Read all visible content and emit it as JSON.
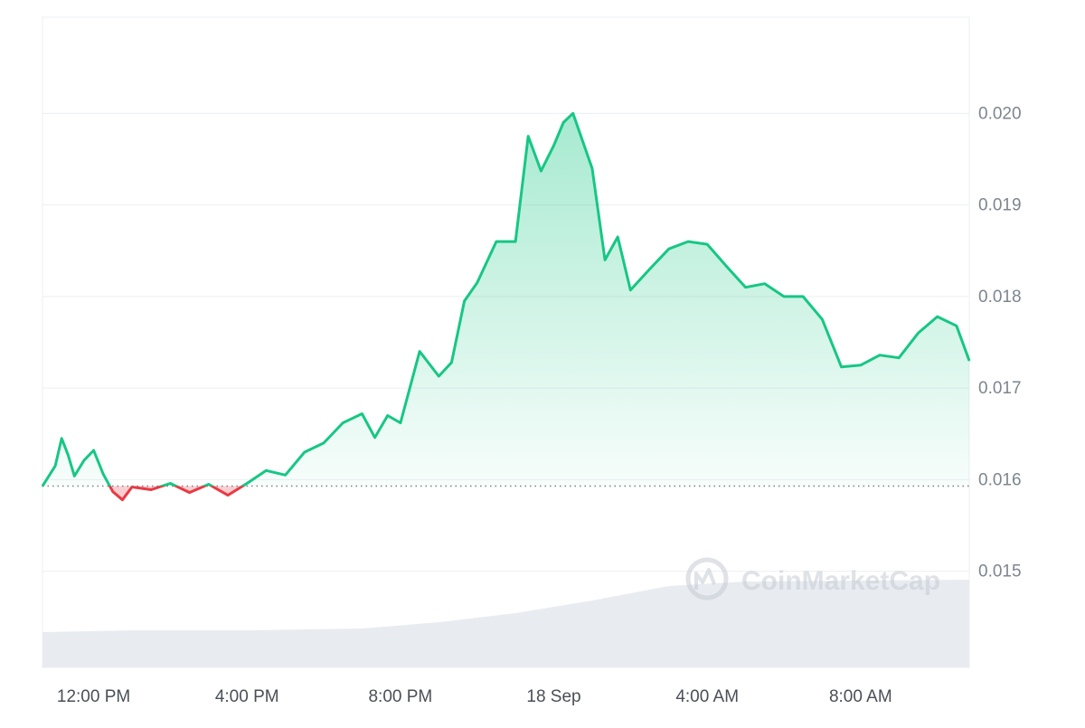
{
  "chart_data": {
    "type": "area",
    "title": "",
    "xlabel": "",
    "ylabel": "",
    "x_axis": {
      "start": "2024-09-17T10:40",
      "end": "2024-09-18T10:50",
      "ticks": [
        {
          "t": "2024-09-17T12:00",
          "label": "12:00 PM"
        },
        {
          "t": "2024-09-17T16:00",
          "label": "4:00 PM"
        },
        {
          "t": "2024-09-17T20:00",
          "label": "8:00 PM"
        },
        {
          "t": "2024-09-18T00:00",
          "label": "18 Sep"
        },
        {
          "t": "2024-09-18T04:00",
          "label": "4:00 AM"
        },
        {
          "t": "2024-09-18T08:00",
          "label": "8:00 AM"
        }
      ]
    },
    "y_axis": {
      "position": "right",
      "ylim": [
        0.01395,
        0.02105
      ],
      "ticks": [
        0.015,
        0.016,
        0.017,
        0.018,
        0.019,
        0.02
      ],
      "tick_labels": [
        "0.015",
        "0.016",
        "0.017",
        "0.018",
        "0.019",
        "0.020"
      ],
      "grid": true
    },
    "baseline": 0.01593,
    "baseline_style": "dotted",
    "colors": {
      "above": "#16c784",
      "below": "#ea3943",
      "volume": "#e8ecf1",
      "grid": "#eceff3",
      "baseline": "#7a7f87"
    },
    "series": [
      {
        "x": [
          "2024-09-17T10:40",
          "2024-09-17T11:00",
          "2024-09-17T11:10",
          "2024-09-17T11:20",
          "2024-09-17T11:30",
          "2024-09-17T11:45",
          "2024-09-17T12:00",
          "2024-09-17T12:15",
          "2024-09-17T12:30",
          "2024-09-17T12:45",
          "2024-09-17T13:00",
          "2024-09-17T13:30",
          "2024-09-17T14:00",
          "2024-09-17T14:30",
          "2024-09-17T15:00",
          "2024-09-17T15:30",
          "2024-09-17T16:00",
          "2024-09-17T16:30",
          "2024-09-17T17:00",
          "2024-09-17T17:30",
          "2024-09-17T18:00",
          "2024-09-17T18:30",
          "2024-09-17T19:00",
          "2024-09-17T19:20",
          "2024-09-17T19:40",
          "2024-09-17T20:00",
          "2024-09-17T20:30",
          "2024-09-17T21:00",
          "2024-09-17T21:20",
          "2024-09-17T21:40",
          "2024-09-17T22:00",
          "2024-09-17T22:30",
          "2024-09-17T23:00",
          "2024-09-17T23:20",
          "2024-09-17T23:40",
          "2024-09-18T00:00",
          "2024-09-18T00:15",
          "2024-09-18T00:30",
          "2024-09-18T01:00",
          "2024-09-18T01:20",
          "2024-09-18T01:40",
          "2024-09-18T02:00",
          "2024-09-18T02:30",
          "2024-09-18T03:00",
          "2024-09-18T03:30",
          "2024-09-18T04:00",
          "2024-09-18T04:30",
          "2024-09-18T05:00",
          "2024-09-18T05:30",
          "2024-09-18T06:00",
          "2024-09-18T06:30",
          "2024-09-18T07:00",
          "2024-09-18T07:30",
          "2024-09-18T08:00",
          "2024-09-18T08:30",
          "2024-09-18T09:00",
          "2024-09-18T09:30",
          "2024-09-18T10:00",
          "2024-09-18T10:30",
          "2024-09-18T10:50"
        ],
        "values": [
          0.01593,
          0.01615,
          0.01645,
          0.01627,
          0.01604,
          0.01621,
          0.01632,
          0.01606,
          0.01587,
          0.01578,
          0.01592,
          0.01589,
          0.01596,
          0.01586,
          0.01595,
          0.01583,
          0.01596,
          0.0161,
          0.01605,
          0.0163,
          0.0164,
          0.01662,
          0.01672,
          0.01646,
          0.0167,
          0.01662,
          0.0174,
          0.01713,
          0.01728,
          0.01795,
          0.01815,
          0.0186,
          0.0186,
          0.01975,
          0.01937,
          0.01965,
          0.0199,
          0.02,
          0.0194,
          0.0184,
          0.01865,
          0.01807,
          0.0183,
          0.01852,
          0.0186,
          0.01857,
          0.01833,
          0.0181,
          0.01814,
          0.018,
          0.018,
          0.01775,
          0.01723,
          0.01725,
          0.01736,
          0.01733,
          0.0176,
          0.01778,
          0.01768,
          0.0173
        ]
      }
    ],
    "volume": {
      "x": [
        "2024-09-17T10:40",
        "2024-09-17T13:00",
        "2024-09-17T16:00",
        "2024-09-17T19:00",
        "2024-09-17T21:00",
        "2024-09-17T23:00",
        "2024-09-18T01:00",
        "2024-09-18T03:00",
        "2024-09-18T05:00",
        "2024-09-18T10:50"
      ],
      "relative": [
        0.39,
        0.41,
        0.41,
        0.43,
        0.5,
        0.6,
        0.74,
        0.9,
        0.95,
        0.97
      ]
    }
  },
  "watermark": {
    "text": "CoinMarketCap"
  }
}
